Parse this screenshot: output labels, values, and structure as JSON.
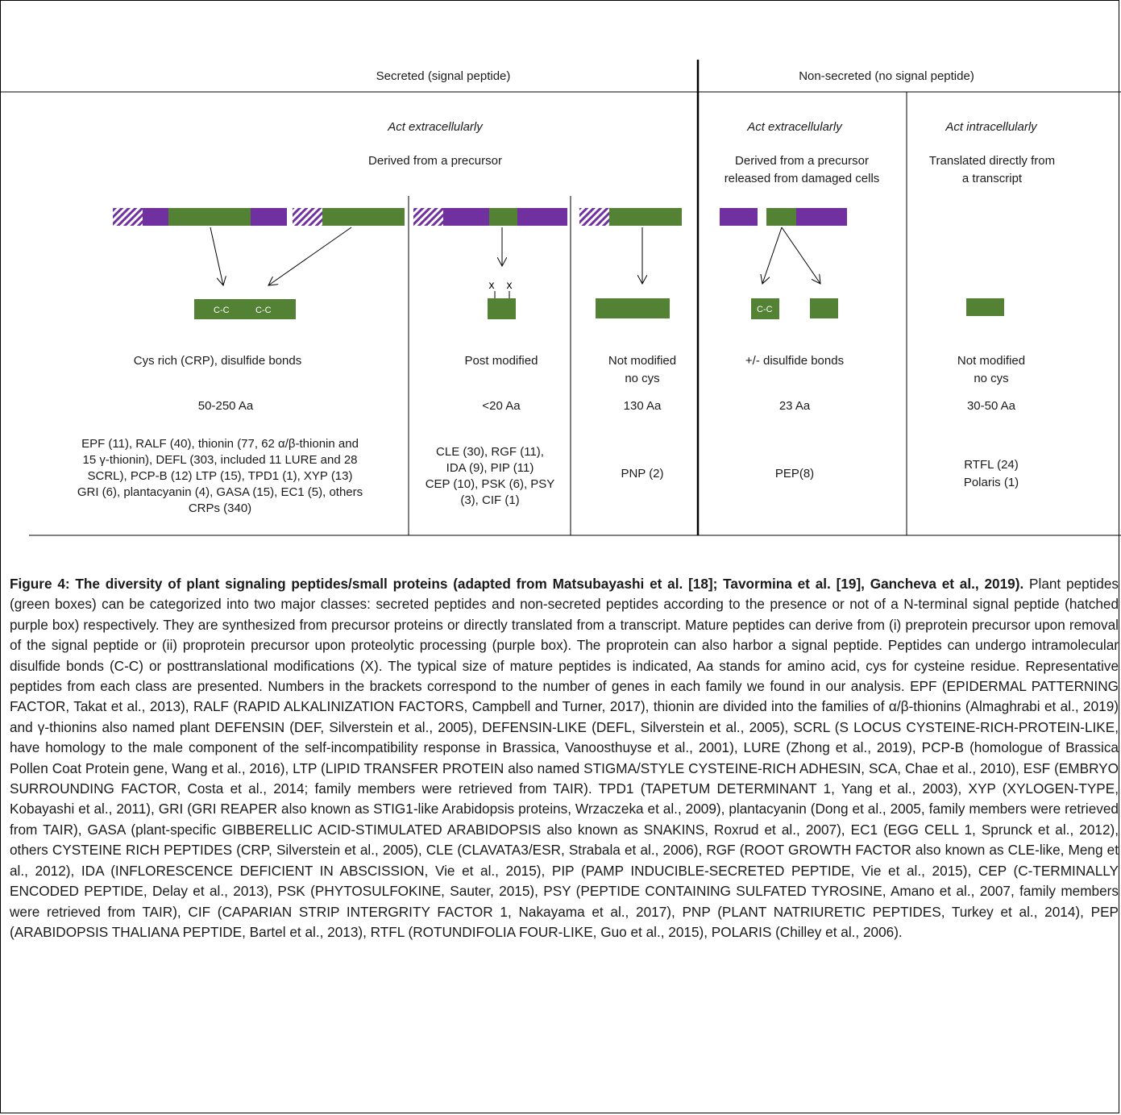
{
  "colors": {
    "peptide": "#548235",
    "propeptide": "#7030a0",
    "signal_hatch": "#7030a0"
  },
  "headers": {
    "secreted": "Secreted (signal peptide)",
    "non_secreted": "Non-secreted (no signal peptide)"
  },
  "columns": {
    "secreted_act": "Act extracellularly",
    "secreted_derived": "Derived from a precursor",
    "ns_act_extra": "Act extracellularly",
    "ns_derived_1": "Derived from a precursor",
    "ns_derived_2": "released from  damaged cells",
    "ns_act_intra": "Act intracellularly",
    "ns_trans_1": "Translated directly  from",
    "ns_trans_2": "a transcript"
  },
  "marks": {
    "cc": "C-C",
    "x": "x"
  },
  "groups": [
    {
      "modification": [
        "Cys rich (CRP), disulfide bonds"
      ],
      "size": "50-250 Aa",
      "examples": [
        "EPF (11), RALF (40), thionin (77, 62 α/β-thionin and",
        "15 γ-thionin), DEFL (303, included 11 LURE and 28",
        "SCRL), PCP-B (12) LTP (15), TPD1 (1), XYP (13)",
        "GRI (6), plantacyanin (4), GASA (15), EC1 (5), others",
        "CRPs (340)"
      ]
    },
    {
      "modification": [
        "Post modified"
      ],
      "size": "<20 Aa",
      "examples": [
        "CLE (30), RGF (11),",
        "IDA (9), PIP (11)",
        "CEP (10), PSK (6), PSY",
        "(3), CIF (1)"
      ]
    },
    {
      "modification": [
        "Not modified",
        "no cys"
      ],
      "size": "130 Aa",
      "examples": [
        "PNP (2)"
      ]
    },
    {
      "modification": [
        "+/- disulfide bonds"
      ],
      "size": "23 Aa",
      "examples": [
        "PEP(8)"
      ]
    },
    {
      "modification": [
        "Not modified",
        "no cys"
      ],
      "size": "30-50 Aa",
      "examples": [
        "RTFL (24)",
        "Polaris (1)"
      ]
    }
  ],
  "caption": {
    "title": "Figure 4: The diversity of plant signaling peptides/small proteins (adapted from Matsubayashi et al. [18]; Tavormina et al. [19], Gancheva et al., 2019).",
    "body": " Plant peptides (green boxes) can be categorized into two major classes: secreted peptides and non-secreted peptides according to the presence or not of a N-terminal signal peptide (hatched purple box) respectively. They are synthesized from precursor proteins or directly translated from a transcript. Mature peptides can derive from (i) preprotein precursor upon removal of the signal peptide or (ii) proprotein precursor upon proteolytic processing (purple box). The proprotein can also harbor a signal peptide. Peptides can undergo intramolecular disulfide bonds (C-C) or posttranslational modifications (X). The typical size of mature peptides is indicated, Aa stands for amino acid, cys for cysteine residue. Representative peptides from each class are presented. Numbers in the brackets correspond to the number of genes in each family we found in our analysis. EPF (EPIDERMAL PATTERNING FACTOR, Takat et al., 2013), RALF (RAPID ALKALINIZATION FACTORS, Campbell and Turner, 2017), thionin are divided into the families of α/β-thionins (Almaghrabi et al., 2019) and γ-thionins also named plant DEFENSIN (DEF, Silverstein et al., 2005), DEFENSIN-LIKE (DEFL, Silverstein et al., 2005), SCRL (S LOCUS CYSTEINE-RICH-PROTEIN-LIKE, have homology to the male component of the self-incompatibility response in Brassica, Vanoosthuyse et al., 2001), LURE (Zhong et al., 2019), PCP-B (homologue of Brassica Pollen Coat Protein gene, Wang et al., 2016), LTP (LIPID TRANSFER PROTEIN also named STIGMA/STYLE CYSTEINE-RICH ADHESIN, SCA, Chae et al., 2010), ESF (EMBRYO SURROUNDING FACTOR, Costa et al., 2014; family members were retrieved from TAIR). TPD1 (TAPETUM DETERMINANT 1, Yang et al., 2003), XYP (XYLOGEN-TYPE, Kobayashi et al., 2011), GRI (GRI REAPER also known as STIG1-like Arabidopsis proteins, Wrzaczeka et al., 2009), plantacyanin (Dong et al., 2005, family members were retrieved from TAIR), GASA (plant-specific GIBBERELLIC ACID-STIMULATED ARABIDOPSIS also known as SNAKINS, Roxrud  et al., 2007), EC1 (EGG CELL 1, Sprunck  et al., 2012), others CYSTEINE RICH PEPTIDES (CRP, Silverstein et al., 2005), CLE (CLAVATA3/ESR, Strabala et al., 2006), RGF (ROOT GROWTH FACTOR also known as CLE-like, Meng et al., 2012), IDA (INFLORESCENCE DEFICIENT IN ABSCISSION, Vie et al., 2015), PIP (PAMP INDUCIBLE-SECRETED PEPTIDE, Vie et al., 2015), CEP (C-TERMINALLY ENCODED PEPTIDE, Delay et al., 2013), PSK (PHYTOSULFOKINE, Sauter, 2015), PSY (PEPTIDE CONTAINING SULFATED TYROSINE, Amano et al., 2007, family members were retrieved from TAIR), CIF (CAPARIAN STRIP INTERGRITY FACTOR 1, Nakayama et al., 2017), PNP (PLANT NATRIURETIC PEPTIDES, Turkey et al., 2014), PEP (ARABIDOPSIS THALIANA PEPTIDE, Bartel et al., 2013), RTFL (ROTUNDIFOLIA FOUR-LIKE, Guo et al., 2015), POLARIS (Chilley et al., 2006)."
  }
}
